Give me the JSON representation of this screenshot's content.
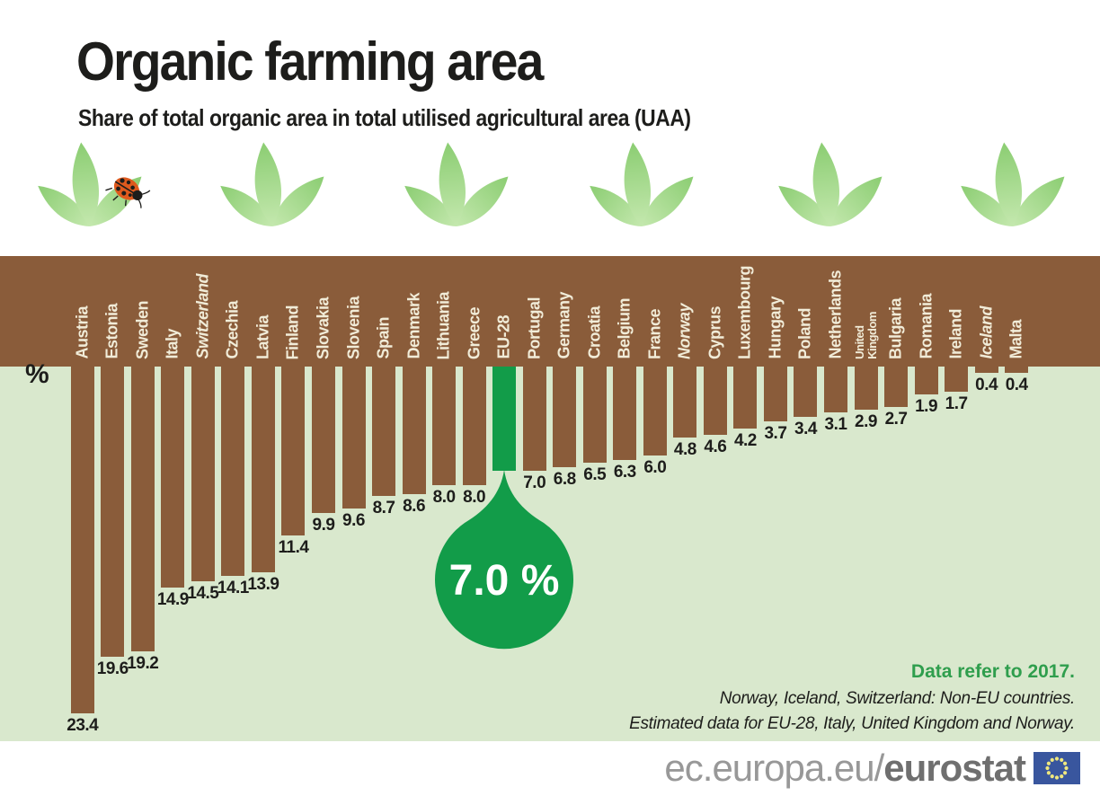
{
  "header": {
    "title": "Organic farming area",
    "subtitle": "Share of total organic area in total utilised agricultural area (UAA)"
  },
  "axis": {
    "unit_label": "%"
  },
  "chart_data": {
    "type": "bar",
    "orientation": "hanging-down-from-soil",
    "title": "Organic farming area",
    "subtitle": "Share of total organic area in total utilised agricultural area (UAA)",
    "unit": "%",
    "categories": [
      "Austria",
      "Estonia",
      "Sweden",
      "Italy",
      "Switzerland",
      "Czechia",
      "Latvia",
      "Finland",
      "Slovakia",
      "Slovenia",
      "Spain",
      "Denmark",
      "Lithuania",
      "Greece",
      "EU-28",
      "Portugal",
      "Germany",
      "Croatia",
      "Belgium",
      "France",
      "Norway",
      "Cyprus",
      "Luxembourg",
      "Hungary",
      "Poland",
      "Netherlands",
      "United\nKingdom",
      "Bulgaria",
      "Romania",
      "Ireland",
      "Iceland",
      "Malta"
    ],
    "values": [
      23.4,
      19.6,
      19.2,
      14.9,
      14.5,
      14.1,
      13.9,
      11.4,
      9.9,
      9.6,
      8.7,
      8.6,
      8.0,
      8.0,
      7.0,
      7.0,
      6.8,
      6.5,
      6.3,
      6.0,
      4.8,
      4.6,
      4.2,
      3.7,
      3.4,
      3.1,
      2.9,
      2.7,
      1.9,
      1.7,
      0.4,
      0.4
    ],
    "italic_categories": [
      "Switzerland",
      "Norway",
      "Iceland"
    ],
    "highlight_category": "EU-28",
    "highlight_callout": "7.0 %",
    "bar_color": "#8a5c3a",
    "highlight_color": "#129c49",
    "plot_background": "#d9e8cd",
    "value_label_color": "#1d1d1b",
    "category_label_color": "#f1ecd8",
    "ylim": [
      0,
      24
    ],
    "legend": "none",
    "grid": "off"
  },
  "notes": {
    "line1": "Data refer to 2017.",
    "line2": "Norway, Iceland, Switzerland: Non-EU countries.",
    "line3": "Estimated data for EU-28, Italy, United Kingdom and Norway."
  },
  "footer": {
    "url_prefix": "ec.europa.eu/",
    "url_bold": "eurostat"
  },
  "decor": {
    "grass": "grass-strip",
    "seedlings": "seedling-icon",
    "ladybug": "ladybug-icon",
    "flag": "eu-flag-icon",
    "colors": {
      "soil": "#8a5c3a",
      "note_green": "#2f9e4d",
      "flag_blue": "#39569e"
    }
  }
}
